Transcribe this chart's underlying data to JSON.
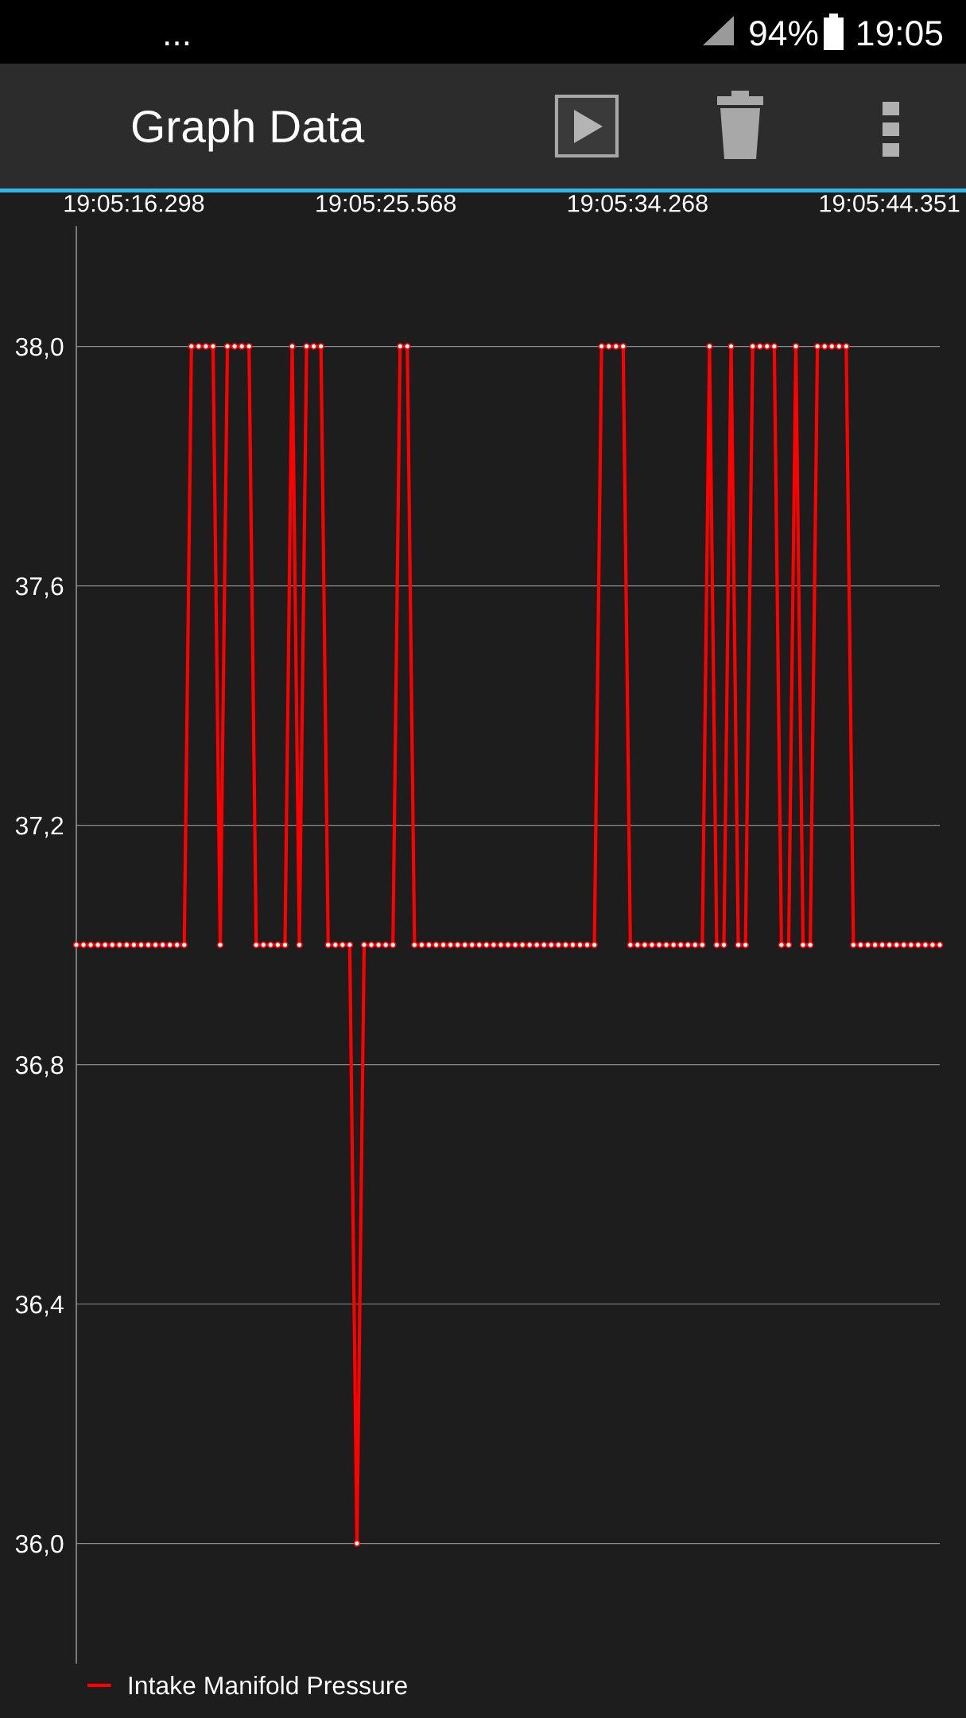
{
  "chart_data": {
    "type": "line",
    "title": "Graph Data",
    "categories": [
      null,
      null,
      null,
      null,
      null,
      null,
      null,
      null,
      "19:05:16.298",
      null,
      null,
      null,
      null,
      null,
      null,
      null,
      null,
      null,
      null,
      null,
      null,
      null,
      null,
      null,
      null,
      null,
      null,
      null,
      null,
      null,
      null,
      null,
      null,
      null,
      null,
      null,
      null,
      null,
      null,
      null,
      null,
      null,
      null,
      "19:05:25.568",
      null,
      null,
      null,
      null,
      null,
      null,
      null,
      null,
      null,
      null,
      null,
      null,
      null,
      null,
      null,
      null,
      null,
      null,
      null,
      null,
      null,
      null,
      null,
      null,
      null,
      null,
      null,
      null,
      null,
      null,
      null,
      null,
      null,
      null,
      "19:05:34.268",
      null,
      null,
      null,
      null,
      null,
      null,
      null,
      null,
      null,
      null,
      null,
      null,
      null,
      null,
      null,
      null,
      null,
      null,
      null,
      null,
      null,
      null,
      null,
      null,
      null,
      null,
      null,
      null,
      null,
      null,
      null,
      null,
      null,
      null,
      "19:05:44.351",
      null,
      null,
      null,
      null,
      null,
      null,
      null
    ],
    "series": [
      {
        "name": "Intake Manifold Pressure",
        "color": "#ff0000",
        "values": [
          37,
          37,
          37,
          37,
          37,
          37,
          37,
          37,
          37,
          37,
          37,
          37,
          37,
          37,
          37,
          37,
          38,
          38,
          38,
          38,
          37,
          38,
          38,
          38,
          38,
          37,
          37,
          37,
          37,
          37,
          38,
          37,
          38,
          38,
          38,
          37,
          37,
          37,
          37,
          36,
          37,
          37,
          37,
          37,
          37,
          38,
          38,
          37,
          37,
          37,
          37,
          37,
          37,
          37,
          37,
          37,
          37,
          37,
          37,
          37,
          37,
          37,
          37,
          37,
          37,
          37,
          37,
          37,
          37,
          37,
          37,
          37,
          37,
          38,
          38,
          38,
          38,
          37,
          37,
          37,
          37,
          37,
          37,
          37,
          37,
          37,
          37,
          37,
          38,
          37,
          37,
          38,
          37,
          37,
          38,
          38,
          38,
          38,
          37,
          37,
          38,
          37,
          37,
          38,
          38,
          38,
          38,
          38,
          37,
          37,
          37,
          37,
          37,
          37,
          37,
          37,
          37,
          37,
          37,
          37,
          37
        ]
      }
    ],
    "ylim": [
      35.8,
      38.2
    ],
    "yticks": [
      {
        "value": 36.0,
        "label": "36,0"
      },
      {
        "value": 36.4,
        "label": "36,4"
      },
      {
        "value": 36.8,
        "label": "36,8"
      },
      {
        "value": 37.2,
        "label": "37,2"
      },
      {
        "value": 37.6,
        "label": "37,6"
      },
      {
        "value": 38.0,
        "label": "38,0"
      }
    ],
    "grid": "y",
    "legend": "bottom left",
    "marker": "circle",
    "line_style": "solid",
    "annotations": [
      "...",
      "94%",
      "19:05"
    ]
  }
}
